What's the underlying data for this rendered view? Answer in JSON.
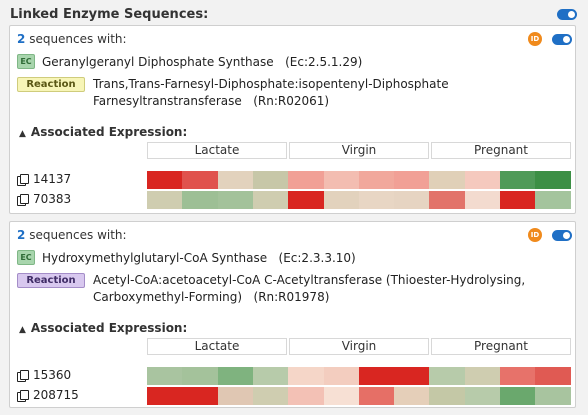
{
  "header": {
    "title": "Linked Enzyme Sequences:",
    "toggle_on": true
  },
  "conditions": [
    "Lactate",
    "Virgin",
    "Pregnant"
  ],
  "cards": [
    {
      "count": "2",
      "count_suffix": "sequences with:",
      "id_badge": "ID",
      "ec_badge": "EC",
      "enzyme": "Geranylgeranyl Diphosphate Synthase   (Ec:2.5.1.29)",
      "reaction_badge": "Reaction",
      "reaction": "Trans,Trans-Farnesyl-Diphosphate:isopentenyl-Diphosphate Farnesyltranstransferase   (Rn:R02061)",
      "assoc_label": "Associated Expression:",
      "genes": [
        {
          "id": "14137",
          "colors": [
            "#d92621",
            "#e0524d",
            "#e2d2bd",
            "#c7c7a8",
            "#f1a096",
            "#f3bdb1",
            "#f1a89c",
            "#f1a096",
            "#e0d0b8",
            "#f5c9be",
            "#4f9a58",
            "#3c8f45"
          ]
        },
        {
          "id": "70383",
          "colors": [
            "#cfcdb0",
            "#9dbf95",
            "#a3c29a",
            "#cfcdb0",
            "#d92621",
            "#e2d2bd",
            "#e8d6c4",
            "#e6d4c2",
            "#e2736a",
            "#f3dbcf",
            "#d92621",
            "#a4c49d"
          ]
        }
      ]
    },
    {
      "count": "2",
      "count_suffix": "sequences with:",
      "id_badge": "ID",
      "ec_badge": "EC",
      "enzyme": "Hydroxymethylglutaryl-CoA Synthase   (Ec:2.3.3.10)",
      "reaction_badge": "Reaction",
      "reaction": "Acetyl-CoA:acetoacetyl-CoA C-Acetyltransferase (Thioester-Hydrolysing, Carboxymethyl-Forming)   (Rn:R01978)",
      "assoc_label": "Associated Expression:",
      "genes": [
        {
          "id": "15360",
          "colors": [
            "#a9c4a0",
            "#a4c29b",
            "#7fb37f",
            "#b7cbaa",
            "#f5d6c8",
            "#f3cdbf",
            "#d92621",
            "#d92621",
            "#b7cbaa",
            "#cfcdb0",
            "#e7726a",
            "#e05a53"
          ]
        },
        {
          "id": "208715",
          "colors": [
            "#d92621",
            "#d92621",
            "#e0c7b3",
            "#cfcdb0",
            "#f3c1b5",
            "#f7e0d4",
            "#e66f66",
            "#e5cfb9",
            "#c4c8a6",
            "#b7cbaa",
            "#6aa86d",
            "#a8c49f"
          ]
        }
      ]
    }
  ]
}
